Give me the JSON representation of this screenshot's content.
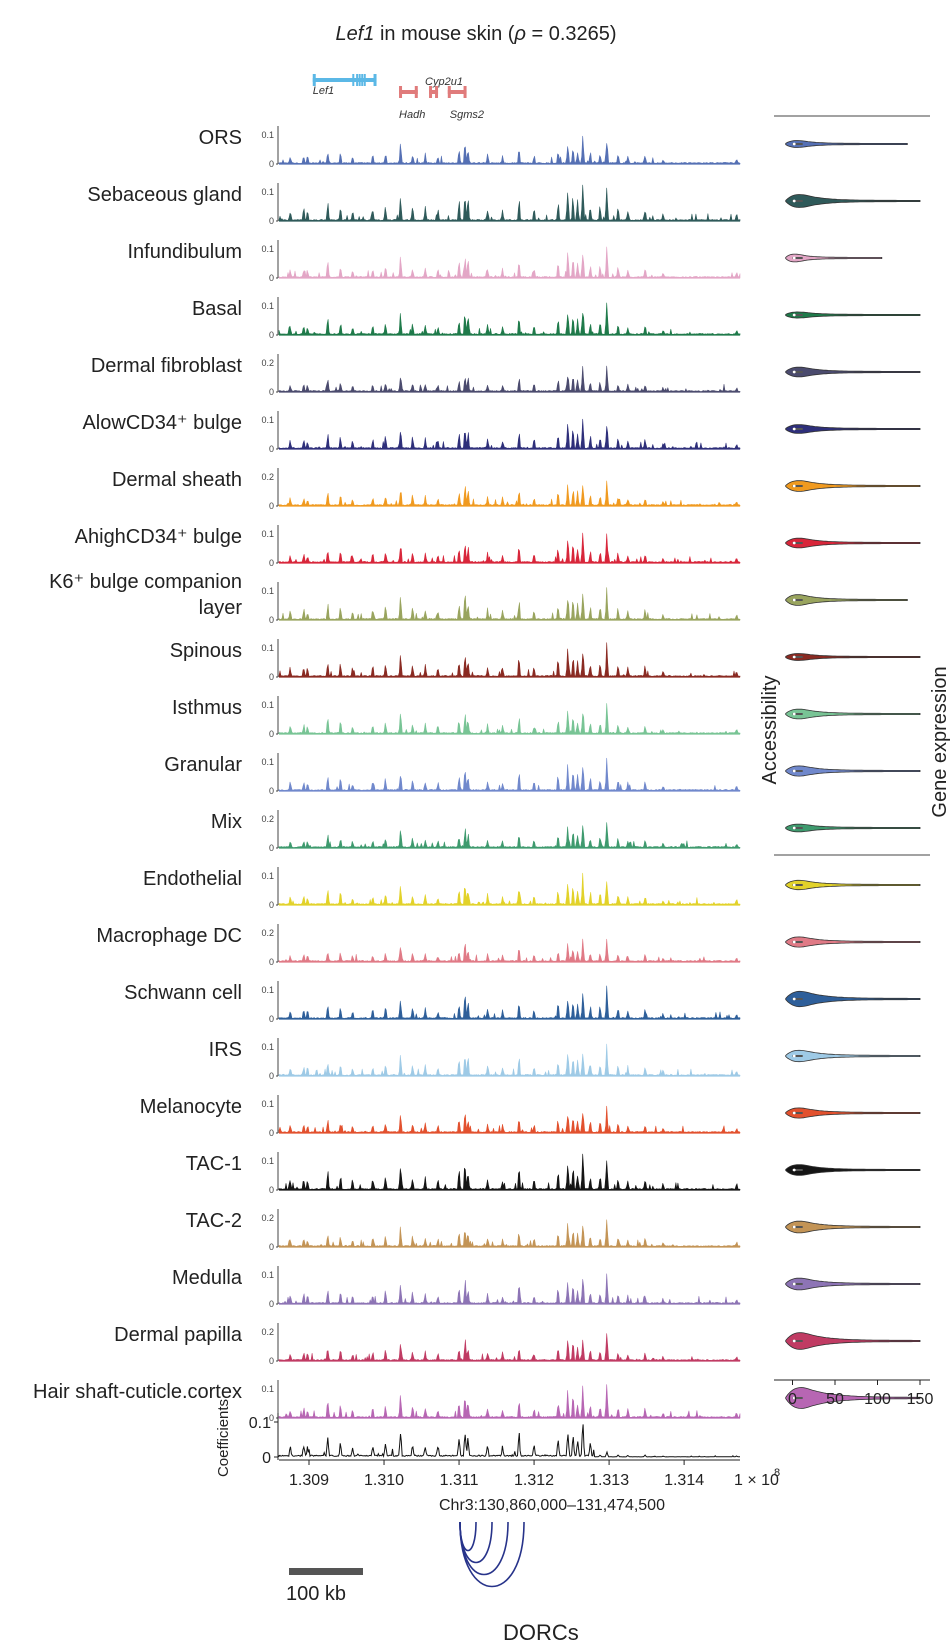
{
  "figure": {
    "title_gene": "Lef1",
    "title_rest": " in mouse skin (",
    "title_rho_symbol": "ρ",
    "title_rho_value": " = 0.3265)"
  },
  "genes": [
    {
      "name": "Lef1",
      "color": "#5bb8e6",
      "start": 130905000,
      "end": 130990000
    },
    {
      "name": "Hadh",
      "color": "#e07b7b",
      "start": 131020000,
      "end": 131045000
    },
    {
      "name": "Cyp2u1",
      "color": "#e07b7b",
      "start": 131060000,
      "end": 131072000
    },
    {
      "name": "Sgms2",
      "color": "#e07b7b",
      "start": 131085000,
      "end": 131110000
    }
  ],
  "axes": {
    "x_ticks": [
      "1.309",
      "1.310",
      "1.311",
      "1.312",
      "1.313",
      "1.314"
    ],
    "x_tick_values": [
      130900000,
      131000000,
      131100000,
      131200000,
      131300000,
      131400000
    ],
    "x_multiplier": "1 × 10",
    "x_exponent": "8",
    "x_region": "Chr3:130,860,000–131,474,500",
    "x_range": [
      130860000,
      131474500
    ],
    "scale_bar": "100 kb",
    "dorcs_label": "DORCs",
    "coefficients_label": "Coefficients",
    "coefficients_ticks": [
      "0.1",
      "0"
    ],
    "accessibility_label": "Accessibility",
    "gene_expression_label": "Gene expression",
    "violin_x_ticks": [
      "0",
      "50",
      "100",
      "150"
    ],
    "violin_x_range": [
      -10,
      150
    ]
  },
  "chart_data": {
    "type": "line",
    "title": "Lef1 in mouse skin (ρ = 0.3265)",
    "xlabel": "Chr3:130,860,000–131,474,500",
    "ylabel": "Accessibility",
    "series": [
      {
        "name": "ORS",
        "ymax": "0.1",
        "color": "#5570b4",
        "peak_scale": 0.9,
        "violin_width": 0.25,
        "violin_tail": 0.9
      },
      {
        "name": "Sebaceous gland",
        "ymax": "0.1",
        "color": "#2f5a5a",
        "peak_scale": 1.25,
        "violin_width": 0.55,
        "violin_tail": 1.0
      },
      {
        "name": "Infundibulum",
        "ymax": "0.1",
        "color": "#e3a6c6",
        "peak_scale": 1.0,
        "violin_width": 0.3,
        "violin_tail": 0.7
      },
      {
        "name": "Basal",
        "ymax": "0.1",
        "color": "#1f7a4a",
        "peak_scale": 1.0,
        "violin_width": 0.2,
        "violin_tail": 1.0
      },
      {
        "name": "Dermal fibroblast",
        "ymax": "0.2",
        "color": "#4b4b6e",
        "peak_scale": 0.85,
        "violin_width": 0.4,
        "violin_tail": 1.0
      },
      {
        "name": "AlowCD34⁺ bulge",
        "ymax": "0.1",
        "color": "#2e2f7a",
        "peak_scale": 1.0,
        "violin_width": 0.35,
        "violin_tail": 1.0
      },
      {
        "name": "Dermal sheath",
        "ymax": "0.2",
        "color": "#f09a20",
        "peak_scale": 0.9,
        "violin_width": 0.45,
        "violin_tail": 1.0
      },
      {
        "name": "AhighCD34⁺ bulge",
        "ymax": "0.1",
        "color": "#d8263a",
        "peak_scale": 0.95,
        "violin_width": 0.4,
        "violin_tail": 1.0
      },
      {
        "name": "K6⁺ bulge companion layer",
        "ymax": "0.1",
        "color": "#99a45e",
        "peak_scale": 1.05,
        "violin_width": 0.45,
        "violin_tail": 0.9
      },
      {
        "name": "Spinous",
        "ymax": "0.1",
        "color": "#8a2a22",
        "peak_scale": 1.1,
        "violin_width": 0.25,
        "violin_tail": 1.0
      },
      {
        "name": "Isthmus",
        "ymax": "0.1",
        "color": "#78c495",
        "peak_scale": 0.95,
        "violin_width": 0.4,
        "violin_tail": 1.0
      },
      {
        "name": "Granular",
        "ymax": "0.1",
        "color": "#7088cc",
        "peak_scale": 1.0,
        "violin_width": 0.42,
        "violin_tail": 1.0
      },
      {
        "name": "Mix",
        "ymax": "0.2",
        "color": "#3e9a6e",
        "peak_scale": 0.85,
        "violin_width": 0.3,
        "violin_tail": 1.0
      },
      {
        "name": "Endothelial",
        "ymax": "0.1",
        "color": "#e2d22a",
        "peak_scale": 1.0,
        "violin_width": 0.38,
        "violin_tail": 1.0
      },
      {
        "name": "Macrophage DC",
        "ymax": "0.2",
        "color": "#e07a86",
        "peak_scale": 0.75,
        "violin_width": 0.42,
        "violin_tail": 1.0
      },
      {
        "name": "Schwann cell",
        "ymax": "0.1",
        "color": "#2e5f9a",
        "peak_scale": 1.0,
        "violin_width": 0.65,
        "violin_tail": 1.0
      },
      {
        "name": "IRS",
        "ymax": "0.1",
        "color": "#9ecae6",
        "peak_scale": 1.05,
        "violin_width": 0.48,
        "violin_tail": 1.0
      },
      {
        "name": "Melanocyte",
        "ymax": "0.1",
        "color": "#e2512e",
        "peak_scale": 0.9,
        "violin_width": 0.42,
        "violin_tail": 1.0
      },
      {
        "name": "TAC-1",
        "ymax": "0.1",
        "color": "#151515",
        "peak_scale": 1.2,
        "violin_width": 0.45,
        "violin_tail": 1.0
      },
      {
        "name": "TAC-2",
        "ymax": "0.2",
        "color": "#c39456",
        "peak_scale": 0.9,
        "violin_width": 0.5,
        "violin_tail": 1.0
      },
      {
        "name": "Medulla",
        "ymax": "0.1",
        "color": "#8d74b5",
        "peak_scale": 1.0,
        "violin_width": 0.5,
        "violin_tail": 1.0
      },
      {
        "name": "Dermal papilla",
        "ymax": "0.2",
        "color": "#c03b63",
        "peak_scale": 0.9,
        "violin_width": 0.7,
        "violin_tail": 1.0
      },
      {
        "name": "Hair shaft-cuticle.cortex",
        "ymax": "0.1",
        "color": "#b766b3",
        "peak_scale": 1.05,
        "violin_width": 0.85,
        "violin_tail": 1.0
      }
    ],
    "peaks_mb": [
      {
        "x": 130875000,
        "h": 0.3
      },
      {
        "x": 130893000,
        "h": 0.35
      },
      {
        "x": 130898000,
        "h": 0.3
      },
      {
        "x": 130925000,
        "h": 0.55
      },
      {
        "x": 130942000,
        "h": 0.45
      },
      {
        "x": 130958000,
        "h": 0.3
      },
      {
        "x": 130985000,
        "h": 0.35
      },
      {
        "x": 131002000,
        "h": 0.45
      },
      {
        "x": 131022000,
        "h": 0.75
      },
      {
        "x": 131038000,
        "h": 0.4
      },
      {
        "x": 131055000,
        "h": 0.35
      },
      {
        "x": 131072000,
        "h": 0.3
      },
      {
        "x": 131100000,
        "h": 0.55
      },
      {
        "x": 131108000,
        "h": 0.85
      },
      {
        "x": 131112000,
        "h": 0.6
      },
      {
        "x": 131138000,
        "h": 0.35
      },
      {
        "x": 131158000,
        "h": 0.3
      },
      {
        "x": 131180000,
        "h": 0.65
      },
      {
        "x": 131200000,
        "h": 0.35
      },
      {
        "x": 131232000,
        "h": 0.55
      },
      {
        "x": 131245000,
        "h": 0.85
      },
      {
        "x": 131252000,
        "h": 0.7
      },
      {
        "x": 131258000,
        "h": 0.5
      },
      {
        "x": 131265000,
        "h": 1.0
      },
      {
        "x": 131275000,
        "h": 0.45
      },
      {
        "x": 131288000,
        "h": 0.45
      },
      {
        "x": 131297000,
        "h": 1.0
      },
      {
        "x": 131312000,
        "h": 0.4
      },
      {
        "x": 131325000,
        "h": 0.3
      },
      {
        "x": 131348000,
        "h": 0.35
      },
      {
        "x": 131372000,
        "h": 0.2
      },
      {
        "x": 131470000,
        "h": 0.2
      }
    ],
    "coefficients": {
      "ylim": [
        0,
        0.12
      ]
    },
    "dorc_arcs": 4
  }
}
